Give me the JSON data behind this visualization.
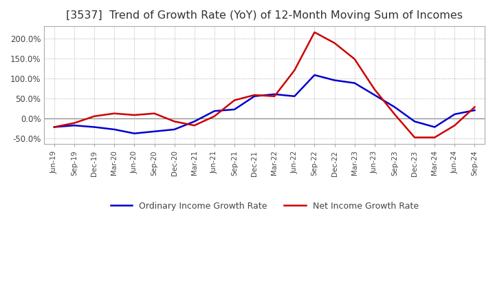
{
  "title": "[3537]  Trend of Growth Rate (YoY) of 12-Month Moving Sum of Incomes",
  "title_fontsize": 11.5,
  "ylim": [
    -65,
    230
  ],
  "yticks": [
    -50,
    0,
    50,
    100,
    150,
    200
  ],
  "background_color": "#ffffff",
  "grid_color": "#aaaaaa",
  "ordinary_color": "#0000cc",
  "net_color": "#cc0000",
  "x_labels": [
    "Jun-19",
    "Sep-19",
    "Dec-19",
    "Mar-20",
    "Jun-20",
    "Sep-20",
    "Dec-20",
    "Mar-21",
    "Jun-21",
    "Sep-21",
    "Dec-21",
    "Mar-22",
    "Jun-22",
    "Sep-22",
    "Dec-22",
    "Mar-23",
    "Jun-23",
    "Sep-23",
    "Dec-23",
    "Mar-24",
    "Jun-24",
    "Sep-24"
  ],
  "ordinary_income": [
    -22,
    -18,
    -22,
    -28,
    -38,
    -33,
    -28,
    -8,
    18,
    22,
    55,
    60,
    55,
    108,
    95,
    88,
    58,
    28,
    -8,
    -22,
    10,
    20
  ],
  "net_income": [
    -22,
    -12,
    5,
    12,
    8,
    12,
    -8,
    -18,
    5,
    45,
    58,
    55,
    120,
    215,
    188,
    148,
    72,
    10,
    -48,
    -48,
    -18,
    28
  ],
  "legend_labels": [
    "Ordinary Income Growth Rate",
    "Net Income Growth Rate"
  ],
  "line_width": 1.8
}
